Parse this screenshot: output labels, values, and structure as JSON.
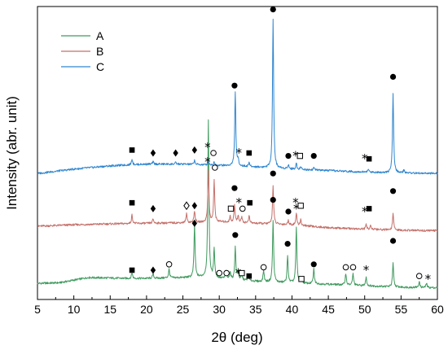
{
  "chart_data": {
    "type": "line",
    "xlabel": "2θ (deg)",
    "ylabel": "Intensity (abr. unit)",
    "xlim": [
      5,
      60
    ],
    "x_ticks": [
      5,
      10,
      15,
      20,
      25,
      30,
      35,
      40,
      45,
      50,
      55,
      60
    ],
    "y_ticks_shown": false,
    "legend_placement": "top-left",
    "colors": {
      "A": "#3f9a5e",
      "B": "#c4706a",
      "C": "#2f86d0"
    },
    "series": [
      {
        "name": "A",
        "baseline": [
          [
            5,
            0.055
          ],
          [
            8,
            0.057
          ],
          [
            12,
            0.075
          ],
          [
            17,
            0.072
          ],
          [
            20,
            0.072
          ],
          [
            24,
            0.074
          ],
          [
            28,
            0.076
          ],
          [
            32,
            0.068
          ],
          [
            36,
            0.06
          ],
          [
            40,
            0.056
          ],
          [
            45,
            0.052
          ],
          [
            50,
            0.047
          ],
          [
            55,
            0.042
          ],
          [
            60,
            0.04
          ]
        ],
        "peaks": [
          [
            18.0,
            0.02
          ],
          [
            20.9,
            0.015
          ],
          [
            23.1,
            0.03
          ],
          [
            26.6,
            0.18
          ],
          [
            28.5,
            0.54
          ],
          [
            29.3,
            0.1
          ],
          [
            30.9,
            0.025
          ],
          [
            31.5,
            0.025
          ],
          [
            32.2,
            0.11
          ],
          [
            32.6,
            0.03
          ],
          [
            33.1,
            0.02
          ],
          [
            34.0,
            0.02
          ],
          [
            36.1,
            0.04
          ],
          [
            37.4,
            0.21
          ],
          [
            39.4,
            0.09
          ],
          [
            40.6,
            0.19
          ],
          [
            41.3,
            0.02
          ],
          [
            43.0,
            0.05
          ],
          [
            47.4,
            0.04
          ],
          [
            48.4,
            0.04
          ],
          [
            50.2,
            0.03
          ],
          [
            53.9,
            0.08
          ],
          [
            57.5,
            0.02
          ],
          [
            58.5,
            0.015
          ]
        ],
        "markers": [
          {
            "x": 18.0,
            "y": 0.1,
            "symbol": "square-filled"
          },
          {
            "x": 20.9,
            "y": 0.1,
            "symbol": "diamond"
          },
          {
            "x": 23.1,
            "y": 0.12,
            "symbol": "circle-open"
          },
          {
            "x": 26.6,
            "y": 0.26,
            "symbol": "diamond"
          },
          {
            "x": 30.0,
            "y": 0.09,
            "symbol": "circle-open"
          },
          {
            "x": 31.0,
            "y": 0.09,
            "symbol": "circle-open"
          },
          {
            "x": 32.2,
            "y": 0.22,
            "symbol": "circle-filled"
          },
          {
            "x": 32.6,
            "y": 0.09,
            "symbol": "star"
          },
          {
            "x": 33.1,
            "y": 0.09,
            "symbol": "square-open"
          },
          {
            "x": 34.1,
            "y": 0.08,
            "symbol": "square-filled"
          },
          {
            "x": 36.1,
            "y": 0.11,
            "symbol": "circle-open"
          },
          {
            "x": 37.4,
            "y": 0.34,
            "symbol": "circle-filled"
          },
          {
            "x": 39.4,
            "y": 0.19,
            "symbol": "circle-filled"
          },
          {
            "x": 40.6,
            "y": 0.31,
            "symbol": "star"
          },
          {
            "x": 41.3,
            "y": 0.07,
            "symbol": "square-open"
          },
          {
            "x": 43.0,
            "y": 0.12,
            "symbol": "circle-filled"
          },
          {
            "x": 47.4,
            "y": 0.11,
            "symbol": "circle-open"
          },
          {
            "x": 48.4,
            "y": 0.11,
            "symbol": "circle-open"
          },
          {
            "x": 50.2,
            "y": 0.1,
            "symbol": "star"
          },
          {
            "x": 53.9,
            "y": 0.2,
            "symbol": "circle-filled"
          },
          {
            "x": 57.5,
            "y": 0.08,
            "symbol": "circle-open"
          },
          {
            "x": 58.7,
            "y": 0.07,
            "symbol": "star"
          }
        ]
      },
      {
        "name": "B",
        "baseline": [
          [
            5,
            0.25
          ],
          [
            10,
            0.255
          ],
          [
            15,
            0.258
          ],
          [
            20,
            0.26
          ],
          [
            25,
            0.262
          ],
          [
            30,
            0.265
          ],
          [
            35,
            0.26
          ],
          [
            40,
            0.255
          ],
          [
            45,
            0.245
          ],
          [
            50,
            0.24
          ],
          [
            55,
            0.236
          ],
          [
            60,
            0.235
          ]
        ],
        "peaks": [
          [
            18.0,
            0.03
          ],
          [
            20.9,
            0.015
          ],
          [
            25.5,
            0.03
          ],
          [
            26.6,
            0.04
          ],
          [
            28.5,
            0.18
          ],
          [
            29.3,
            0.14
          ],
          [
            31.5,
            0.02
          ],
          [
            32.1,
            0.06
          ],
          [
            32.6,
            0.025
          ],
          [
            33.1,
            0.02
          ],
          [
            34.1,
            0.025
          ],
          [
            37.4,
            0.13
          ],
          [
            39.5,
            0.015
          ],
          [
            40.6,
            0.04
          ],
          [
            41.2,
            0.02
          ],
          [
            50.2,
            0.015
          ],
          [
            50.8,
            0.015
          ],
          [
            53.9,
            0.06
          ]
        ],
        "markers": [
          {
            "x": 18.0,
            "y": 0.33,
            "symbol": "square-filled"
          },
          {
            "x": 20.9,
            "y": 0.31,
            "symbol": "diamond"
          },
          {
            "x": 25.5,
            "y": 0.32,
            "symbol": "diamond-open"
          },
          {
            "x": 26.6,
            "y": 0.32,
            "symbol": "diamond"
          },
          {
            "x": 28.4,
            "y": 0.47,
            "symbol": "star"
          },
          {
            "x": 29.4,
            "y": 0.45,
            "symbol": "circle-open"
          },
          {
            "x": 31.6,
            "y": 0.31,
            "symbol": "square-open"
          },
          {
            "x": 32.1,
            "y": 0.38,
            "symbol": "circle-filled"
          },
          {
            "x": 32.7,
            "y": 0.33,
            "symbol": "star"
          },
          {
            "x": 33.2,
            "y": 0.31,
            "symbol": "circle-open"
          },
          {
            "x": 34.2,
            "y": 0.33,
            "symbol": "square-filled"
          },
          {
            "x": 37.4,
            "y": 0.43,
            "symbol": "circle-filled"
          },
          {
            "x": 39.5,
            "y": 0.3,
            "symbol": "circle-filled"
          },
          {
            "x": 40.5,
            "y": 0.33,
            "symbol": "star"
          },
          {
            "x": 41.2,
            "y": 0.32,
            "symbol": "square-open"
          },
          {
            "x": 50.0,
            "y": 0.3,
            "symbol": "star"
          },
          {
            "x": 50.6,
            "y": 0.31,
            "symbol": "square-filled"
          },
          {
            "x": 53.9,
            "y": 0.37,
            "symbol": "circle-filled"
          }
        ]
      },
      {
        "name": "C",
        "baseline": [
          [
            5,
            0.43
          ],
          [
            10,
            0.445
          ],
          [
            15,
            0.456
          ],
          [
            18,
            0.46
          ],
          [
            20,
            0.462
          ],
          [
            25,
            0.462
          ],
          [
            30,
            0.458
          ],
          [
            35,
            0.452
          ],
          [
            40,
            0.445
          ],
          [
            45,
            0.44
          ],
          [
            50,
            0.435
          ],
          [
            55,
            0.432
          ],
          [
            60,
            0.43
          ]
        ],
        "peaks": [
          [
            18.0,
            0.02
          ],
          [
            20.9,
            0.008
          ],
          [
            24.0,
            0.005
          ],
          [
            26.6,
            0.015
          ],
          [
            28.5,
            0.015
          ],
          [
            29.3,
            0.01
          ],
          [
            32.2,
            0.25
          ],
          [
            32.6,
            0.02
          ],
          [
            34.1,
            0.015
          ],
          [
            37.4,
            0.51
          ],
          [
            39.5,
            0.015
          ],
          [
            40.6,
            0.02
          ],
          [
            41.2,
            0.01
          ],
          [
            43.0,
            0.008
          ],
          [
            50.5,
            0.01
          ],
          [
            53.9,
            0.27
          ],
          [
            55.4,
            0.01
          ]
        ],
        "markers": [
          {
            "x": 18.0,
            "y": 0.51,
            "symbol": "square-filled"
          },
          {
            "x": 20.9,
            "y": 0.5,
            "symbol": "diamond"
          },
          {
            "x": 24.0,
            "y": 0.5,
            "symbol": "diamond"
          },
          {
            "x": 26.6,
            "y": 0.51,
            "symbol": "diamond"
          },
          {
            "x": 28.4,
            "y": 0.52,
            "symbol": "star"
          },
          {
            "x": 29.2,
            "y": 0.5,
            "symbol": "circle-open"
          },
          {
            "x": 32.1,
            "y": 0.73,
            "symbol": "circle-filled"
          },
          {
            "x": 32.7,
            "y": 0.5,
            "symbol": "star"
          },
          {
            "x": 34.1,
            "y": 0.5,
            "symbol": "square-filled"
          },
          {
            "x": 37.4,
            "y": 0.99,
            "symbol": "circle-filled"
          },
          {
            "x": 39.5,
            "y": 0.49,
            "symbol": "circle-filled"
          },
          {
            "x": 40.5,
            "y": 0.49,
            "symbol": "star"
          },
          {
            "x": 41.1,
            "y": 0.49,
            "symbol": "square-open"
          },
          {
            "x": 43.0,
            "y": 0.49,
            "symbol": "circle-filled"
          },
          {
            "x": 50.0,
            "y": 0.48,
            "symbol": "star"
          },
          {
            "x": 50.6,
            "y": 0.48,
            "symbol": "square-filled"
          },
          {
            "x": 53.9,
            "y": 0.76,
            "symbol": "circle-filled"
          }
        ]
      }
    ]
  }
}
